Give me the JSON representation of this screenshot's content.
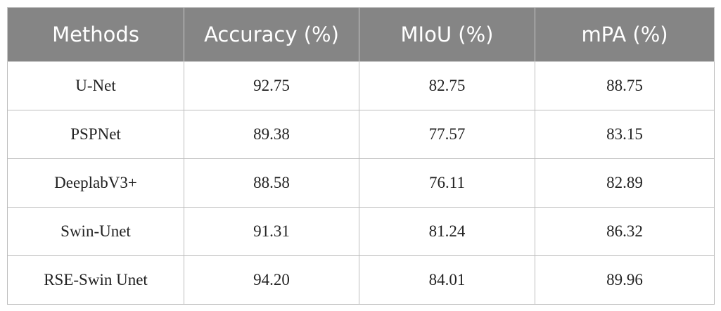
{
  "table": {
    "header": [
      "Methods",
      "Accuracy (%)",
      "MIoU (%)",
      "mPA (%)"
    ],
    "rows": [
      [
        "U-Net",
        "92.75",
        "82.75",
        "88.75"
      ],
      [
        "PSPNet",
        "89.38",
        "77.57",
        "83.15"
      ],
      [
        "DeeplabV3+",
        "88.58",
        "76.11",
        "82.89"
      ],
      [
        "Swin-Unet",
        "91.31",
        "81.24",
        "86.32"
      ],
      [
        "RSE-Swin Unet",
        "94.20",
        "84.01",
        "89.96"
      ]
    ]
  }
}
